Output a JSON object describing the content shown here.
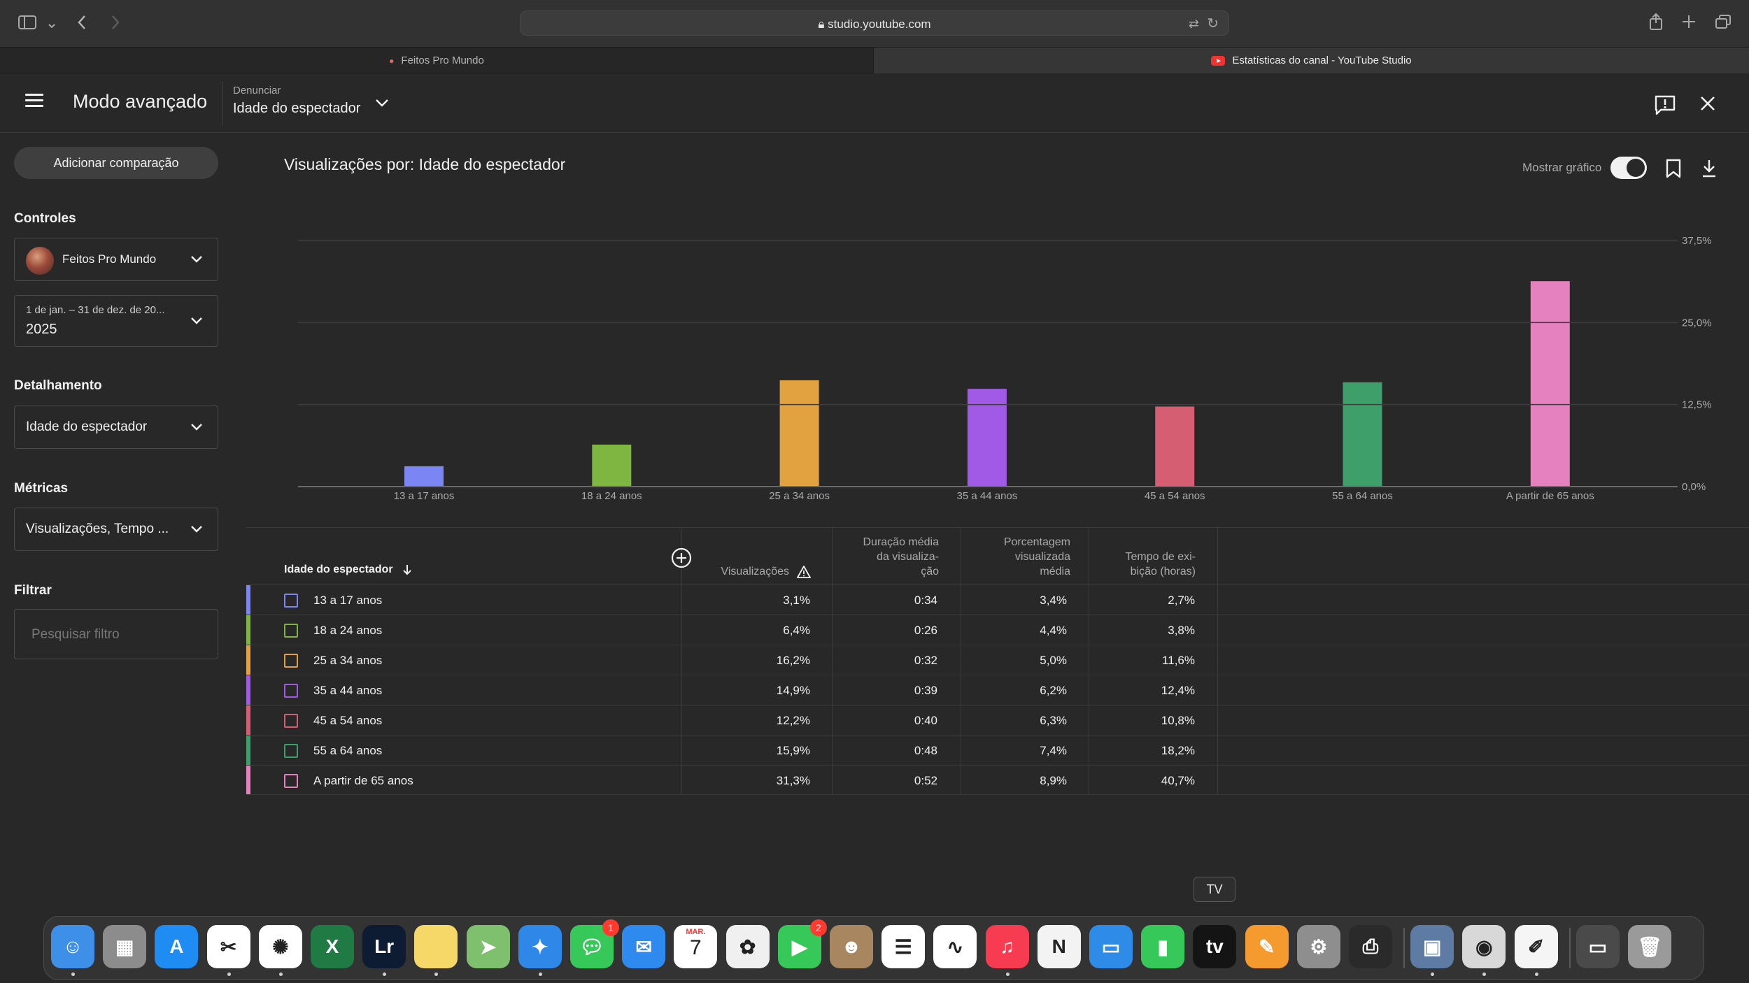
{
  "browser": {
    "url": "studio.youtube.com",
    "tabs": [
      {
        "label": "Feitos Pro Mundo"
      },
      {
        "label": "Estatísticas do canal - YouTube Studio"
      }
    ]
  },
  "header": {
    "title": "Modo avançado",
    "report_label": "Denunciar",
    "report_value": "Idade do espectador"
  },
  "sidebar": {
    "add_comparison": "Adicionar comparação",
    "controls_label": "Controles",
    "channel_name": "Feitos Pro Mundo",
    "date_range": "1 de jan. – 31 de dez. de 20...",
    "year": "2025",
    "breakdown_label": "Detalhamento",
    "breakdown_value": "Idade do espectador",
    "metrics_label": "Métricas",
    "metrics_value": "Visualizações, Tempo ...",
    "filter_label": "Filtrar",
    "filter_placeholder": "Pesquisar filtro"
  },
  "chart_header": {
    "title": "Visualizações por: Idade do espectador",
    "show_chart": "Mostrar gráfico",
    "show_chart_on": true
  },
  "chart_data": {
    "type": "bar",
    "categories": [
      "13 a 17 anos",
      "18 a 24 anos",
      "25 a 34 anos",
      "35 a 44 anos",
      "45 a 54 anos",
      "55 a 64 anos",
      "A partir de 65 anos"
    ],
    "values": [
      3.1,
      6.4,
      16.2,
      14.9,
      12.2,
      15.9,
      31.3
    ],
    "colors": [
      "#7b86f4",
      "#7fb541",
      "#e2a23f",
      "#a15ae6",
      "#d65e73",
      "#3f9f6a",
      "#e581be"
    ],
    "ylim": [
      0,
      37.5
    ],
    "yticks": [
      "0,0%",
      "12,5%",
      "25,0%",
      "37,5%"
    ],
    "ytick_values": [
      0,
      12.5,
      25,
      37.5
    ],
    "grid": true,
    "xlabel": "",
    "ylabel": ""
  },
  "table": {
    "headers": {
      "age": "Idade do espectador",
      "views": "Visualizações",
      "avg_duration": [
        "Duração média",
        "da visualiza-",
        "ção"
      ],
      "avg_percent": [
        "Porcentagem",
        "visualizada",
        "média"
      ],
      "watch_time": [
        "Tempo de exi-",
        "bição (horas)"
      ]
    },
    "rows": [
      {
        "label": "13 a 17 anos",
        "views": "3,1%",
        "duration": "0:34",
        "percent": "3,4%",
        "watch": "2,7%",
        "color": "#7b86f4"
      },
      {
        "label": "18 a 24 anos",
        "views": "6,4%",
        "duration": "0:26",
        "percent": "4,4%",
        "watch": "3,8%",
        "color": "#7fb541"
      },
      {
        "label": "25 a 34 anos",
        "views": "16,2%",
        "duration": "0:32",
        "percent": "5,0%",
        "watch": "11,6%",
        "color": "#e2a23f"
      },
      {
        "label": "35 a 44 anos",
        "views": "14,9%",
        "duration": "0:39",
        "percent": "6,2%",
        "watch": "12,4%",
        "color": "#a15ae6"
      },
      {
        "label": "45 a 54 anos",
        "views": "12,2%",
        "duration": "0:40",
        "percent": "6,3%",
        "watch": "10,8%",
        "color": "#d65e73"
      },
      {
        "label": "55 a 64 anos",
        "views": "15,9%",
        "duration": "0:48",
        "percent": "7,4%",
        "watch": "18,2%",
        "color": "#3f9f6a"
      },
      {
        "label": "A partir de 65 anos",
        "views": "31,3%",
        "duration": "0:52",
        "percent": "8,9%",
        "watch": "40,7%",
        "color": "#e581be"
      }
    ]
  },
  "dock": {
    "tooltip": "TV",
    "calendar_month": "MAR.",
    "calendar_day": "7",
    "messages_badge": "1",
    "facetime_badge": "2",
    "apps": [
      {
        "icon": "finder-icon",
        "color": "#3d8fe8"
      },
      {
        "icon": "launchpad-icon",
        "color": "#8c8c8c"
      },
      {
        "icon": "app-store-icon",
        "color": "#1e8cf2"
      },
      {
        "icon": "capcut-icon",
        "color": "#ffffff"
      },
      {
        "icon": "chatgpt-icon",
        "color": "#ffffff"
      },
      {
        "icon": "excel-icon",
        "color": "#1f7a44"
      },
      {
        "icon": "lightroom-icon",
        "color": "#0d1b33"
      },
      {
        "icon": "notes-icon",
        "color": "#f5d867"
      },
      {
        "icon": "maps-icon",
        "color": "#7fc06e"
      },
      {
        "icon": "safari-icon",
        "color": "#2f88e8"
      },
      {
        "icon": "messages-icon",
        "color": "#36c95a"
      },
      {
        "icon": "mail-icon",
        "color": "#2f8af0"
      },
      {
        "icon": "calendar-icon",
        "color": "#ffffff"
      },
      {
        "icon": "photos-icon",
        "color": "#f0f0f0"
      },
      {
        "icon": "facetime-icon",
        "color": "#36c95a"
      },
      {
        "icon": "contacts-icon",
        "color": "#a8865f"
      },
      {
        "icon": "reminders-icon",
        "color": "#ffffff"
      },
      {
        "icon": "freeform-icon",
        "color": "#ffffff"
      },
      {
        "icon": "music-icon",
        "color": "#f73c52"
      },
      {
        "icon": "news-icon",
        "color": "#f3f3f3"
      },
      {
        "icon": "keynote-icon",
        "color": "#2e8be8"
      },
      {
        "icon": "numbers-icon",
        "color": "#36c95a"
      },
      {
        "icon": "apple-tv-icon",
        "color": "#141414"
      },
      {
        "icon": "pages-icon",
        "color": "#f59a2e"
      },
      {
        "icon": "system-settings-icon",
        "color": "#8e8e8e"
      },
      {
        "icon": "printer-icon",
        "color": "#2a2a2a"
      },
      {
        "icon": "preview-icon",
        "color": "#5e7ca3"
      },
      {
        "icon": "disk-utility-icon",
        "color": "#d8d8d8"
      },
      {
        "icon": "text-edit-icon",
        "color": "#f5f5f5"
      },
      {
        "icon": "screen-sharing-icon",
        "color": "#4a4a4a"
      },
      {
        "icon": "trash-icon",
        "color": "#9a9a9a"
      }
    ]
  }
}
